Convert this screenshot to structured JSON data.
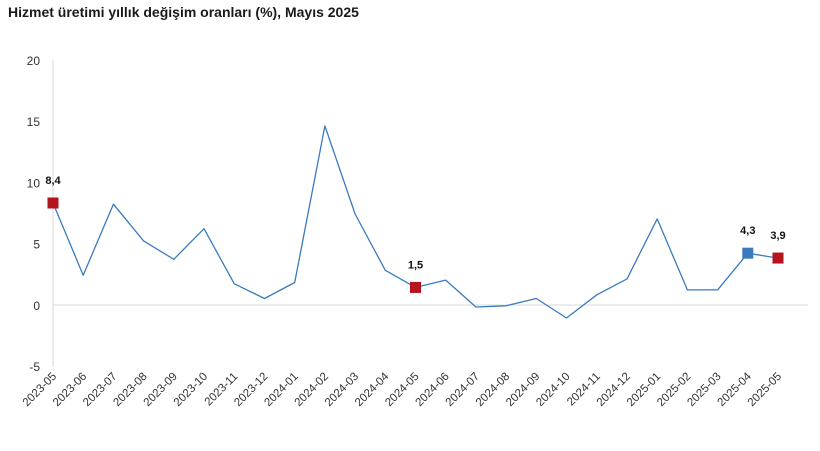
{
  "chart_data": {
    "type": "line",
    "title": "Hizmet üretimi yıllık değişim oranları (%), Mayıs 2025",
    "xlabel": "",
    "ylabel": "",
    "ylim": [
      -5,
      20
    ],
    "yticks": [
      -5,
      0,
      5,
      10,
      15,
      20
    ],
    "grid": false,
    "categories": [
      "2023-05",
      "2023-06",
      "2023-07",
      "2023-08",
      "2023-09",
      "2023-10",
      "2023-11",
      "2023-12",
      "2024-01",
      "2024-02",
      "2024-03",
      "2024-04",
      "2024-05",
      "2024-06",
      "2024-07",
      "2024-08",
      "2024-09",
      "2024-10",
      "2024-11",
      "2024-12",
      "2025-01",
      "2025-02",
      "2025-03",
      "2025-04",
      "2025-05"
    ],
    "values": [
      8.4,
      2.5,
      8.3,
      5.3,
      3.8,
      6.3,
      1.8,
      0.6,
      1.9,
      14.7,
      7.5,
      2.9,
      1.5,
      2.1,
      -0.1,
      0.0,
      0.6,
      -1.0,
      0.9,
      2.2,
      7.1,
      1.3,
      1.3,
      4.3,
      3.9
    ],
    "line_color": "#3a7bbf",
    "highlights": [
      {
        "category": "2023-05",
        "label": "8,4",
        "color": "#b5141c"
      },
      {
        "category": "2024-05",
        "label": "1,5",
        "color": "#b5141c"
      },
      {
        "category": "2025-04",
        "label": "4,3",
        "color": "#3a7bbf"
      },
      {
        "category": "2025-05",
        "label": "3,9",
        "color": "#b5141c"
      }
    ]
  }
}
